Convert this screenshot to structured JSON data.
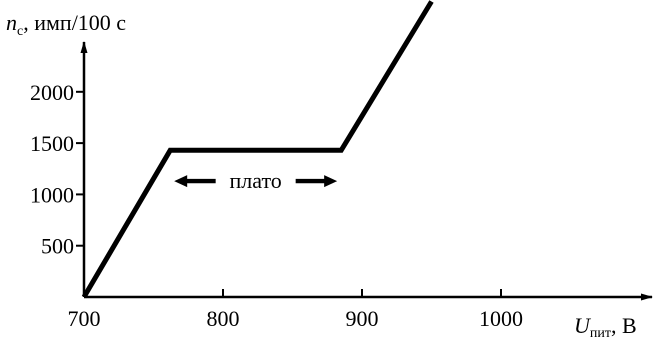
{
  "chart_data": {
    "type": "line",
    "title": "",
    "ylabel": {
      "symbol": "n",
      "subscript": "с",
      "unit": ", имп/100 с"
    },
    "xlabel": {
      "symbol": "U",
      "subscript": "пит",
      "unit": ", В"
    },
    "xlim": [
      700,
      1100
    ],
    "ylim": [
      0,
      2700
    ],
    "x_ticks": [
      700,
      800,
      900,
      1000
    ],
    "x_tick_labels": [
      "700",
      "800",
      "900",
      "1000"
    ],
    "y_ticks": [
      500,
      1000,
      1500,
      2000
    ],
    "y_tick_labels": [
      "500",
      "1000",
      "1500",
      "2000"
    ],
    "grid": false,
    "series": [
      {
        "x": [
          700,
          762,
          885,
          950
        ],
        "y": [
          0,
          1430,
          1430,
          2880
        ]
      }
    ],
    "annotations": [
      {
        "text": "плато",
        "x_range": [
          762,
          885
        ],
        "y": 1130,
        "arrows": "both-outward"
      }
    ]
  }
}
